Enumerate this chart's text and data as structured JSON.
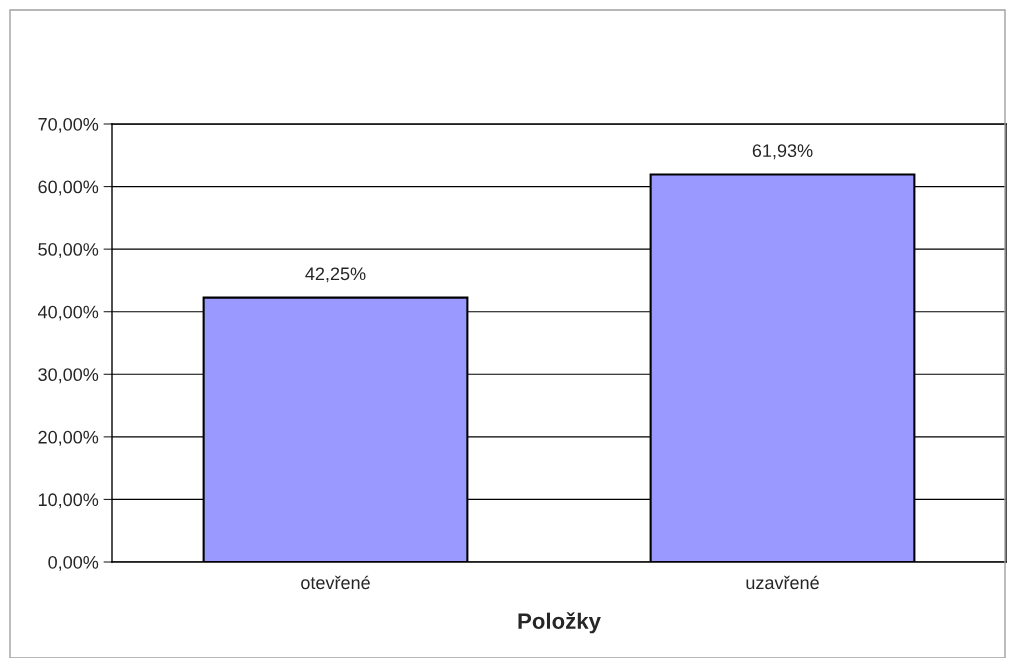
{
  "chart_data": {
    "type": "bar",
    "xlabel": "Položky",
    "categories": [
      "otevřené",
      "uzavřené"
    ],
    "values": [
      42.25,
      61.93
    ],
    "color": "#9999ff",
    "value_labels": [
      "42,25%",
      "61,93%"
    ],
    "ylim": [
      0,
      70
    ],
    "yticks": [
      {
        "value": 0,
        "label": "0,00%"
      },
      {
        "value": 10,
        "label": "10,00%"
      },
      {
        "value": 20,
        "label": "20,00%"
      },
      {
        "value": 30,
        "label": "30,00%"
      },
      {
        "value": 40,
        "label": "40,00%"
      },
      {
        "value": 50,
        "label": "50,00%"
      },
      {
        "value": 60,
        "label": "60,00%"
      },
      {
        "value": 70,
        "label": "70,00%"
      }
    ],
    "grid": "y",
    "legend": false
  }
}
